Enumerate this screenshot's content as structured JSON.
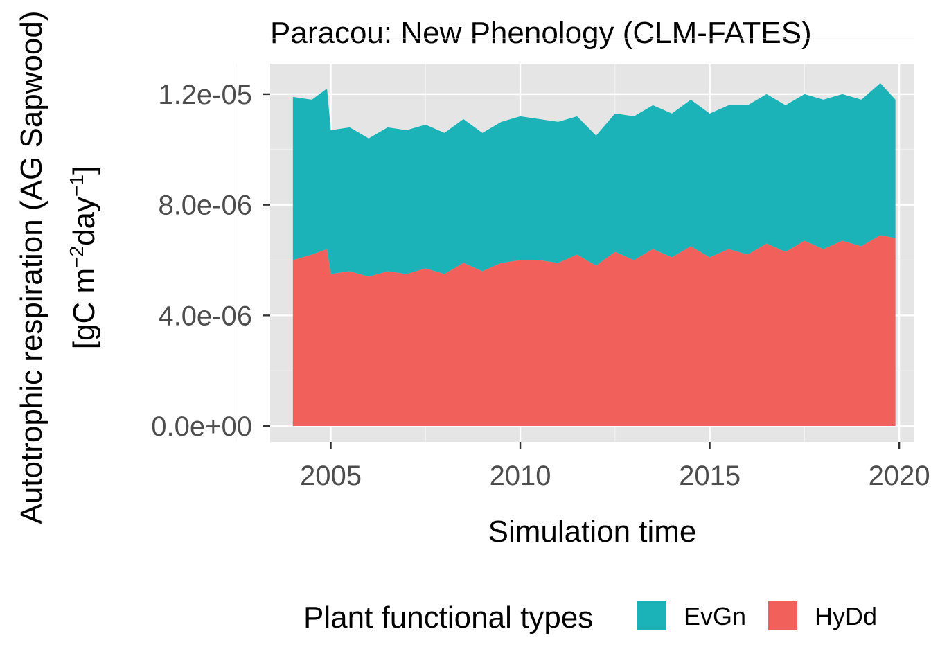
{
  "chart_data": {
    "type": "area",
    "stacked": true,
    "title": "Paracou: New Phenology (CLM-FATES)",
    "xlabel": "Simulation time",
    "ylabel_line1": "Autotrophic respiration (AG Sapwood)",
    "ylabel_line2": "[gC m",
    "ylabel_sup1": "−2",
    "ylabel_mid": "day",
    "ylabel_sup2": "−1",
    "ylabel_end": "]",
    "xlim": [
      2003.4,
      2020.4
    ],
    "ylim": [
      -5.75e-07,
      1.31e-05
    ],
    "x_ticks": [
      2005,
      2010,
      2015,
      2020
    ],
    "x_tick_labels": [
      "2005",
      "2010",
      "2015",
      "2020"
    ],
    "y_ticks": [
      0,
      4e-06,
      8e-06,
      1.2e-05
    ],
    "y_tick_labels": [
      "0.0e+00",
      "4.0e-06",
      "8.0e-06",
      "1.2e-05"
    ],
    "grid": true,
    "legend_title": "Plant functional types",
    "legend_position": "bottom",
    "legend": [
      {
        "name": "EvGn",
        "color": "#1bb3b8"
      },
      {
        "name": "HyDd",
        "color": "#f2605c"
      }
    ],
    "x": [
      2004.0,
      2004.5,
      2004.9,
      2005.0,
      2005.5,
      2006.0,
      2006.5,
      2007.0,
      2007.5,
      2008.0,
      2008.5,
      2009.0,
      2009.5,
      2010.0,
      2010.5,
      2011.0,
      2011.5,
      2012.0,
      2012.5,
      2013.0,
      2013.5,
      2014.0,
      2014.5,
      2015.0,
      2015.5,
      2016.0,
      2016.5,
      2017.0,
      2017.5,
      2018.0,
      2018.5,
      2019.0,
      2019.5,
      2019.9
    ],
    "series": [
      {
        "name": "HyDd",
        "color": "#f2605c",
        "values": [
          6e-06,
          6.2e-06,
          6.4e-06,
          5.5e-06,
          5.6e-06,
          5.4e-06,
          5.6e-06,
          5.5e-06,
          5.7e-06,
          5.5e-06,
          5.9e-06,
          5.6e-06,
          5.9e-06,
          6e-06,
          6e-06,
          5.9e-06,
          6.2e-06,
          5.8e-06,
          6.3e-06,
          6e-06,
          6.4e-06,
          6.1e-06,
          6.5e-06,
          6.1e-06,
          6.4e-06,
          6.2e-06,
          6.6e-06,
          6.3e-06,
          6.7e-06,
          6.4e-06,
          6.7e-06,
          6.5e-06,
          6.9e-06,
          6.8e-06
        ]
      },
      {
        "name": "EvGn",
        "color": "#1bb3b8",
        "values": [
          5.9e-06,
          5.6e-06,
          5.8e-06,
          5.2e-06,
          5.2e-06,
          5e-06,
          5.2e-06,
          5.2e-06,
          5.2e-06,
          5.1e-06,
          5.2e-06,
          5e-06,
          5.1e-06,
          5.2e-06,
          5.1e-06,
          5.1e-06,
          5e-06,
          4.7e-06,
          5e-06,
          5.2e-06,
          5.2e-06,
          5.2e-06,
          5.3e-06,
          5.2e-06,
          5.2e-06,
          5.4e-06,
          5.4e-06,
          5.3e-06,
          5.3e-06,
          5.4e-06,
          5.3e-06,
          5.3e-06,
          5.5e-06,
          5e-06
        ]
      }
    ]
  }
}
